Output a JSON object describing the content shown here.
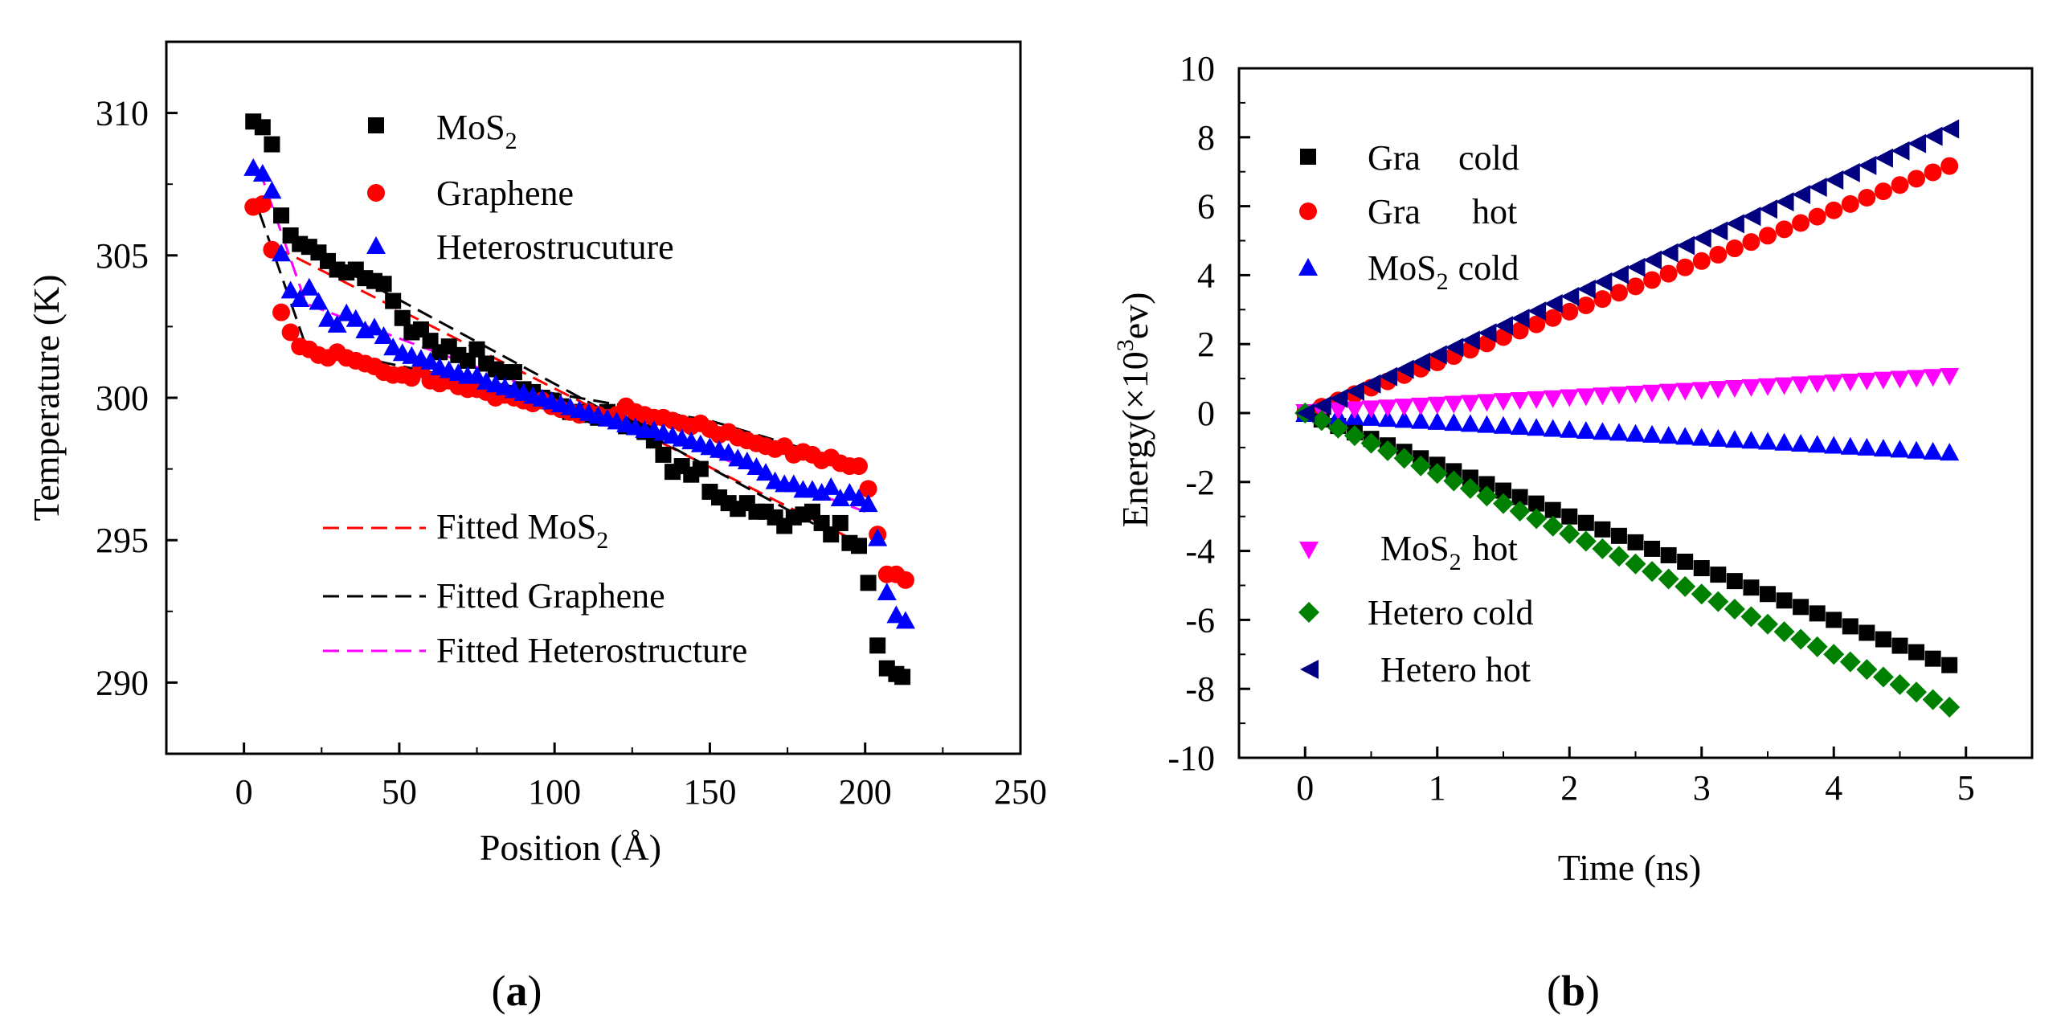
{
  "chart_data": [
    {
      "id": "a",
      "panel_label": "(a)",
      "panel_label_parts": {
        "open": "(",
        "letter": "a",
        "close": ")"
      },
      "type": "scatter",
      "xlabel": "Position (Å)",
      "ylabel": "Temperature (K)",
      "xlim": [
        -25,
        250
      ],
      "ylim": [
        287.5,
        312.5
      ],
      "xticks": [
        0,
        50,
        100,
        150,
        200,
        250
      ],
      "yticks": [
        290,
        295,
        300,
        305,
        310
      ],
      "xtick_labels": [
        "0",
        "50",
        "100",
        "150",
        "200",
        "250"
      ],
      "ytick_labels": [
        "290",
        "295",
        "300",
        "305",
        "310"
      ],
      "grid": false,
      "legend_position": "top-right",
      "series": [
        {
          "name": "MoS2",
          "legend_label": {
            "base": "MoS",
            "sub": "2"
          },
          "marker": "square",
          "color": "#000000",
          "x": [
            3,
            6,
            9,
            12,
            15,
            18,
            21,
            24,
            27,
            30,
            33,
            36,
            39,
            42,
            45,
            48,
            51,
            54,
            57,
            60,
            63,
            66,
            69,
            72,
            75,
            78,
            81,
            84,
            87,
            90,
            93,
            96,
            99,
            102,
            105,
            108,
            111,
            114,
            117,
            120,
            123,
            126,
            129,
            132,
            135,
            138,
            141,
            144,
            147,
            150,
            153,
            156,
            159,
            162,
            165,
            168,
            171,
            174,
            177,
            180,
            183,
            186,
            189,
            192,
            195,
            198,
            201,
            204,
            207,
            210,
            212
          ],
          "y": [
            309.7,
            309.5,
            308.9,
            306.4,
            305.7,
            305.4,
            305.3,
            305.1,
            304.8,
            304.5,
            304.4,
            304.5,
            304.2,
            304.1,
            304.0,
            303.4,
            302.8,
            302.3,
            302.4,
            302.0,
            301.6,
            301.8,
            301.5,
            301.3,
            301.7,
            301.2,
            301.0,
            300.9,
            300.9,
            300.3,
            300.2,
            300.0,
            299.9,
            299.7,
            299.5,
            299.5,
            299.4,
            299.3,
            299.5,
            299.2,
            299.0,
            299.1,
            298.8,
            298.5,
            298.0,
            297.4,
            297.6,
            297.3,
            297.5,
            296.7,
            296.5,
            296.3,
            296.1,
            296.3,
            296.0,
            296.0,
            295.8,
            295.5,
            295.8,
            295.9,
            296.0,
            295.6,
            295.2,
            295.6,
            294.9,
            294.8,
            293.5,
            291.3,
            290.5,
            290.3,
            290.2
          ]
        },
        {
          "name": "Graphene",
          "marker": "circle",
          "color": "#ff0000",
          "x": [
            3,
            6,
            9,
            12,
            15,
            18,
            21,
            24,
            27,
            30,
            33,
            36,
            39,
            42,
            45,
            48,
            51,
            54,
            57,
            60,
            63,
            66,
            69,
            72,
            75,
            78,
            81,
            84,
            87,
            90,
            93,
            96,
            99,
            102,
            105,
            108,
            111,
            114,
            117,
            120,
            123,
            126,
            129,
            132,
            135,
            138,
            141,
            144,
            147,
            150,
            153,
            156,
            159,
            162,
            165,
            168,
            171,
            174,
            177,
            180,
            183,
            186,
            189,
            192,
            195,
            198,
            201,
            204,
            207,
            210,
            213
          ],
          "y": [
            306.7,
            306.8,
            305.2,
            303.0,
            302.3,
            301.8,
            301.7,
            301.5,
            301.4,
            301.6,
            301.4,
            301.3,
            301.2,
            301.1,
            300.9,
            300.8,
            300.8,
            300.7,
            301.0,
            300.6,
            300.5,
            300.6,
            300.4,
            300.3,
            300.3,
            300.2,
            300.0,
            300.1,
            300.0,
            299.9,
            299.8,
            299.9,
            299.7,
            299.6,
            299.5,
            299.4,
            299.5,
            299.4,
            299.3,
            299.4,
            299.7,
            299.5,
            299.4,
            299.3,
            299.3,
            299.2,
            299.1,
            299.0,
            299.1,
            298.9,
            298.7,
            298.8,
            298.6,
            298.5,
            298.4,
            298.3,
            298.2,
            298.3,
            298.0,
            298.1,
            298.0,
            297.8,
            297.9,
            297.7,
            297.6,
            297.6,
            296.8,
            295.2,
            293.8,
            293.8,
            293.6
          ]
        },
        {
          "name": "Heterostrucuture",
          "marker": "triangle",
          "color": "#0000ff",
          "x": [
            3,
            6,
            9,
            12,
            15,
            18,
            21,
            24,
            27,
            30,
            33,
            36,
            39,
            42,
            45,
            48,
            51,
            54,
            57,
            60,
            63,
            66,
            69,
            72,
            75,
            78,
            81,
            84,
            87,
            90,
            93,
            96,
            99,
            102,
            105,
            108,
            111,
            114,
            117,
            120,
            123,
            126,
            129,
            132,
            135,
            138,
            141,
            144,
            147,
            150,
            153,
            156,
            159,
            162,
            165,
            168,
            171,
            174,
            177,
            180,
            183,
            186,
            189,
            192,
            195,
            198,
            201,
            204,
            207,
            210,
            213
          ],
          "y": [
            308.1,
            307.9,
            307.3,
            305.1,
            303.8,
            303.5,
            303.9,
            303.4,
            302.8,
            302.6,
            303.0,
            302.8,
            302.4,
            302.5,
            302.2,
            301.8,
            301.6,
            301.5,
            301.4,
            301.3,
            301.1,
            301.0,
            300.9,
            300.8,
            300.8,
            300.6,
            300.5,
            300.4,
            300.3,
            300.2,
            300.1,
            300.0,
            299.9,
            299.8,
            299.7,
            299.6,
            299.5,
            299.4,
            299.3,
            299.2,
            299.1,
            299.0,
            298.9,
            298.9,
            298.8,
            298.7,
            298.6,
            298.5,
            298.4,
            298.3,
            298.2,
            298.1,
            297.9,
            297.8,
            297.6,
            297.4,
            297.1,
            297.0,
            297.0,
            296.8,
            296.8,
            296.7,
            296.9,
            296.5,
            296.7,
            296.5,
            296.3,
            295.1,
            293.2,
            292.4,
            292.2
          ]
        }
      ],
      "fits": [
        {
          "name": "Fitted MoS2",
          "legend_label": {
            "base": "Fitted MoS",
            "sub": "2"
          },
          "style": "dashed",
          "color": "#ff0000",
          "segments": [
            {
              "x": [
                10,
                200
              ],
              "y": [
                305.3,
                294.8
              ]
            }
          ]
        },
        {
          "name": "Fitted Graphene",
          "style": "dashed",
          "color": "#000000",
          "segments": [
            {
              "x": [
                5,
                20,
                60,
                150,
                202
              ],
              "y": [
                306.5,
                301.8,
                300.9,
                299.2,
                297.5
              ]
            },
            {
              "x": [
                15,
                200
              ],
              "y": [
                305.5,
                294.6
              ]
            }
          ]
        },
        {
          "name": "Fitted Heterostructure",
          "style": "dashed",
          "color": "#ff00ff",
          "segments": [
            {
              "x": [
                5,
                20,
                200
              ],
              "y": [
                308.0,
                303.3,
                296.0
              ]
            }
          ]
        }
      ]
    },
    {
      "id": "b",
      "panel_label": "(b)",
      "panel_label_parts": {
        "open": "(",
        "letter": "b",
        "close": ")"
      },
      "type": "scatter",
      "xlabel": "Time (ns)",
      "ylabel": "Energy(×10³ev)",
      "ylabel_parts": {
        "pre": "Energy(×10",
        "sup": "3",
        "post": "ev)"
      },
      "xlim": [
        -0.5,
        5.5
      ],
      "ylim": [
        -10,
        10
      ],
      "xticks": [
        0,
        1,
        2,
        3,
        4,
        5
      ],
      "yticks": [
        -10,
        -8,
        -6,
        -4,
        -2,
        0,
        2,
        4,
        6,
        8,
        10
      ],
      "xtick_labels": [
        "0",
        "1",
        "2",
        "3",
        "4",
        "5"
      ],
      "ytick_labels": [
        "-10",
        "-8",
        "-6",
        "-4",
        "-2",
        "0",
        "2",
        "4",
        "6",
        "8",
        "10"
      ],
      "grid": false,
      "legend_position": "top-left and bottom-left",
      "series": [
        {
          "name": "Gra cold",
          "legend_label": {
            "base": "Gra",
            "tail": "cold"
          },
          "marker": "square",
          "color": "#000000",
          "x_start": 0,
          "x_step": 0.125,
          "count": 40,
          "slope": -1.5
        },
        {
          "name": "Gra hot",
          "legend_label": {
            "base": "Gra",
            "tail": "hot"
          },
          "marker": "circle",
          "color": "#ff0000",
          "x_start": 0,
          "x_step": 0.125,
          "count": 40,
          "slope": 1.47
        },
        {
          "name": "MoS2 cold",
          "legend_label": {
            "base": "MoS",
            "sub": "2",
            "tail": "cold"
          },
          "marker": "triangle",
          "color": "#0000ff",
          "x_start": 0,
          "x_step": 0.125,
          "count": 40,
          "slope": -0.23
        },
        {
          "name": "MoS2 hot",
          "legend_label": {
            "base": "MoS",
            "sub": "2",
            "tail": "hot"
          },
          "marker": "triangle-down",
          "color": "#ff00ff",
          "x_start": 0,
          "x_step": 0.125,
          "count": 40,
          "slope": 0.215
        },
        {
          "name": "Hetero cold",
          "legend_label": {
            "base": "Hetero cold"
          },
          "marker": "diamond",
          "color": "#008000",
          "x_start": 0,
          "x_step": 0.125,
          "count": 40,
          "slope": -1.75
        },
        {
          "name": "Hetero hot",
          "legend_label": {
            "base": "Hetero hot"
          },
          "marker": "triangle-left",
          "color": "#000080",
          "x_start": 0,
          "x_step": 0.125,
          "count": 40,
          "slope": 1.69
        }
      ]
    }
  ]
}
